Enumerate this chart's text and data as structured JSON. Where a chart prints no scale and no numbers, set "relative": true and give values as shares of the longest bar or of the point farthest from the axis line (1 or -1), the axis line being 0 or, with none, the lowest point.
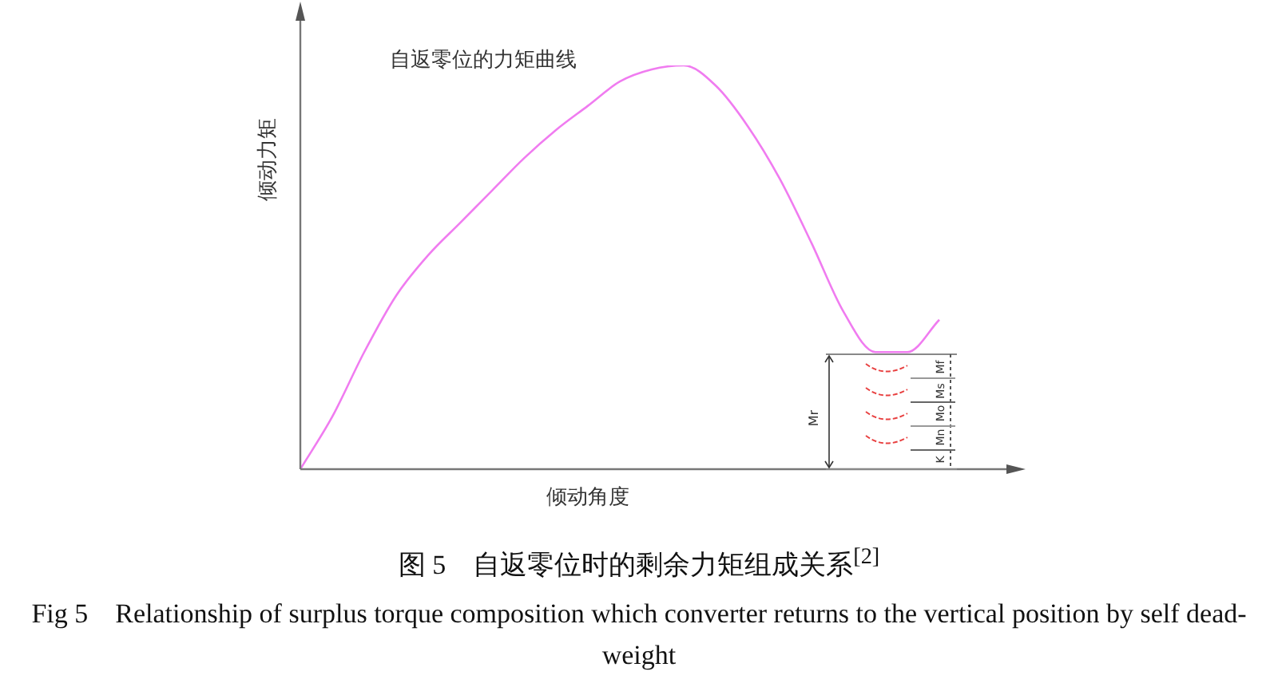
{
  "chart_data": {
    "type": "line",
    "relative": true,
    "title": "自返零位的力矩曲线",
    "xlabel": "倾动角度",
    "ylabel": "倾动力矩",
    "categories": [
      null,
      null,
      null,
      null,
      null,
      null,
      null,
      null,
      null,
      null,
      null,
      null,
      null,
      null,
      null,
      null,
      null,
      null,
      null,
      null,
      null
    ],
    "series": [
      {
        "color": "#f07cf0",
        "values": [
          0,
          0.13,
          0.29,
          0.43,
          0.53,
          0.61,
          0.69,
          0.77,
          0.84,
          0.9,
          0.96,
          0.99,
          1,
          0.95,
          0.85,
          0.72,
          0.56,
          0.39,
          0.29,
          0.29,
          0.37
        ]
      }
    ],
    "marker": "none",
    "line_style": "solid",
    "legend": false,
    "annotations": [
      "图 5　自返零位时的剩余力矩组成关系$^{[2]}$",
      "Fig 5　Relationship of surplus torque composition which converter returns to the vertical position by self dead-weight",
      "Mr",
      "Mf",
      "Ms",
      "Mo",
      "Mn",
      "K"
    ]
  }
}
